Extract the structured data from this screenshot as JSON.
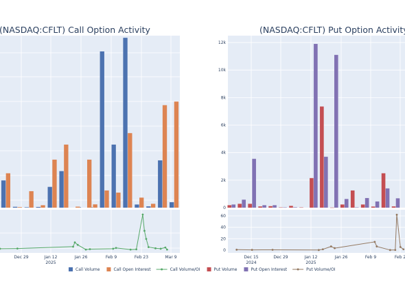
{
  "chart_data": [
    {
      "type": "bar",
      "title": "(NASDAQ:CFLT) Call Option Activity",
      "x_tick_labels": [
        "Dec 29",
        "Jan 12\n2025",
        "Jan 26",
        "Feb 9",
        "Feb 23",
        "Mar 9"
      ],
      "y_tick_labels": [],
      "ylim": [
        0,
        12000
      ],
      "grid": true,
      "series": [
        {
          "name": "Call Volume",
          "color": "#4c72b0",
          "points": [
            {
              "x": 0.6,
              "y": 1900
            },
            {
              "x": 2.6,
              "y": 60
            },
            {
              "x": 4.6,
              "y": 30
            },
            {
              "x": 6.6,
              "y": 50
            },
            {
              "x": 8.6,
              "y": 1450
            },
            {
              "x": 10.6,
              "y": 2550
            },
            {
              "x": 13.6,
              "y": 30
            },
            {
              "x": 15.6,
              "y": 30
            },
            {
              "x": 17.6,
              "y": 10900
            },
            {
              "x": 19.6,
              "y": 4400
            },
            {
              "x": 21.6,
              "y": 11850
            },
            {
              "x": 23.6,
              "y": 220
            },
            {
              "x": 25.6,
              "y": 90
            },
            {
              "x": 27.6,
              "y": 3300
            },
            {
              "x": 29.6,
              "y": 380
            }
          ]
        },
        {
          "name": "Call Open Interest",
          "color": "#dd8452",
          "points": [
            {
              "x": 1.4,
              "y": 2400
            },
            {
              "x": 3.4,
              "y": 40
            },
            {
              "x": 5.4,
              "y": 1150
            },
            {
              "x": 7.4,
              "y": 170
            },
            {
              "x": 9.4,
              "y": 3350
            },
            {
              "x": 11.4,
              "y": 4400
            },
            {
              "x": 13.4,
              "y": 70
            },
            {
              "x": 15.4,
              "y": 3350
            },
            {
              "x": 16.4,
              "y": 230
            },
            {
              "x": 18.4,
              "y": 1200
            },
            {
              "x": 20.4,
              "y": 1050
            },
            {
              "x": 22.4,
              "y": 5200
            },
            {
              "x": 24.4,
              "y": 700
            },
            {
              "x": 26.4,
              "y": 270
            },
            {
              "x": 28.4,
              "y": 7150
            },
            {
              "x": 30.4,
              "y": 7400
            }
          ]
        },
        {
          "name": "Call Volume/OI",
          "color": "#55a868",
          "kind": "line",
          "panel": "ratio",
          "points": [
            {
              "x": 0,
              "y": 0.7
            },
            {
              "x": 3,
              "y": 0.8
            },
            {
              "x": 12.6,
              "y": 1.7
            },
            {
              "x": 12.9,
              "y": 3.8
            },
            {
              "x": 13.4,
              "y": 2.6
            },
            {
              "x": 14.8,
              "y": 0.3
            },
            {
              "x": 15.5,
              "y": 0.5
            },
            {
              "x": 19.5,
              "y": 0.7
            },
            {
              "x": 20,
              "y": 1.1
            },
            {
              "x": 22.5,
              "y": 0.3
            },
            {
              "x": 23.5,
              "y": 0.4
            },
            {
              "x": 24.6,
              "y": 17.5
            },
            {
              "x": 24.9,
              "y": 9.5
            },
            {
              "x": 25.2,
              "y": 5.5
            },
            {
              "x": 25.6,
              "y": 1.5
            },
            {
              "x": 26.8,
              "y": 0.9
            },
            {
              "x": 27.7,
              "y": 0.7
            },
            {
              "x": 28.5,
              "y": 1.3
            },
            {
              "x": 28.8,
              "y": 0.3
            }
          ]
        }
      ]
    },
    {
      "type": "bar",
      "title": "(NASDAQ:CFLT) Put Option Activity",
      "x_tick_labels": [
        "Dec 15\n2024",
        "Dec 29",
        "Jan 12\n2025",
        "Jan 26",
        "Feb 9",
        "Feb 2"
      ],
      "y_tick_labels": [
        "0",
        "2k",
        "4k",
        "6k",
        "8k",
        "10k",
        "12k"
      ],
      "y_ratio_tick_labels": [
        "0",
        "20",
        "40",
        "60"
      ],
      "ylim": [
        0,
        12500
      ],
      "grid": true,
      "series": [
        {
          "name": "Put Volume",
          "color": "#c44e52",
          "points": [
            {
              "x": 0.3,
              "y": 180
            },
            {
              "x": 2.3,
              "y": 280
            },
            {
              "x": 4.3,
              "y": 280
            },
            {
              "x": 6.3,
              "y": 90
            },
            {
              "x": 8.3,
              "y": 110
            },
            {
              "x": 10.3,
              "y": 20
            },
            {
              "x": 12.3,
              "y": 130
            },
            {
              "x": 14.3,
              "y": 20
            },
            {
              "x": 16.3,
              "y": 2150
            },
            {
              "x": 18.3,
              "y": 7350
            },
            {
              "x": 20.3,
              "y": 10
            },
            {
              "x": 22.3,
              "y": 230
            },
            {
              "x": 24.3,
              "y": 1250
            },
            {
              "x": 26.3,
              "y": 230
            },
            {
              "x": 28.3,
              "y": 80
            },
            {
              "x": 30.3,
              "y": 2500
            },
            {
              "x": 32.3,
              "y": 90
            }
          ]
        },
        {
          "name": "Put Open Interest",
          "color": "#8172b3",
          "points": [
            {
              "x": 1.1,
              "y": 230
            },
            {
              "x": 3.1,
              "y": 580
            },
            {
              "x": 5.1,
              "y": 3550
            },
            {
              "x": 7.1,
              "y": 180
            },
            {
              "x": 9.1,
              "y": 180
            },
            {
              "x": 11.1,
              "y": 20
            },
            {
              "x": 13.1,
              "y": 30
            },
            {
              "x": 17.1,
              "y": 11900
            },
            {
              "x": 19.1,
              "y": 3700
            },
            {
              "x": 21.1,
              "y": 11100
            },
            {
              "x": 23.1,
              "y": 630
            },
            {
              "x": 25.1,
              "y": 20
            },
            {
              "x": 27.1,
              "y": 700
            },
            {
              "x": 29.1,
              "y": 450
            },
            {
              "x": 31.1,
              "y": 1400
            },
            {
              "x": 33.1,
              "y": 680
            }
          ]
        },
        {
          "name": "Put Volume/OI",
          "color": "#937860",
          "kind": "line",
          "panel": "ratio",
          "points": [
            {
              "x": 1.7,
              "y": 0.8
            },
            {
              "x": 4.7,
              "y": 0.5
            },
            {
              "x": 8.7,
              "y": 0.6
            },
            {
              "x": 17.7,
              "y": 0.2
            },
            {
              "x": 18.5,
              "y": 1.5
            },
            {
              "x": 20.1,
              "y": 6.5
            },
            {
              "x": 20.8,
              "y": 3.5
            },
            {
              "x": 28.6,
              "y": 14.5
            },
            {
              "x": 29,
              "y": 6.5
            },
            {
              "x": 31.6,
              "y": 0.2
            },
            {
              "x": 32.6,
              "y": 0.3
            },
            {
              "x": 32.9,
              "y": 62
            },
            {
              "x": 33.6,
              "y": 5.5
            },
            {
              "x": 34.2,
              "y": 1.5
            }
          ]
        }
      ]
    }
  ],
  "legend": {
    "items": [
      {
        "label": "Call Volume",
        "kind": "bar",
        "color": "#4c72b0"
      },
      {
        "label": "Call Open Interest",
        "kind": "bar",
        "color": "#dd8452"
      },
      {
        "label": "Call Volume/OI",
        "kind": "line",
        "color": "#55a868"
      },
      {
        "label": "Put Volume",
        "kind": "bar",
        "color": "#c44e52"
      },
      {
        "label": "Put Open Interest",
        "kind": "bar",
        "color": "#8172b3"
      },
      {
        "label": "Put Volume/OI",
        "kind": "line",
        "color": "#937860"
      }
    ]
  },
  "colors": {
    "plot_bg": "#e5ecf6",
    "grid": "#ffffff",
    "text": "#2a3f5f"
  }
}
